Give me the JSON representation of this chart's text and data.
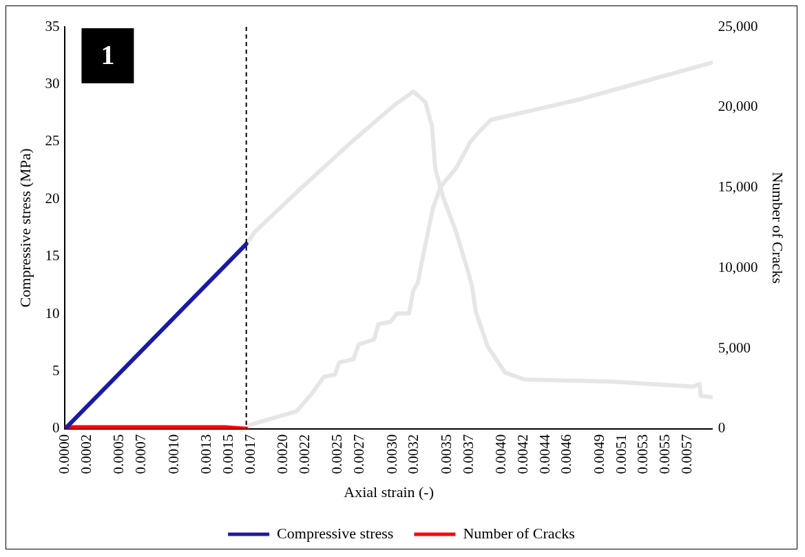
{
  "chart_data": {
    "type": "line",
    "xlabel": "Axial strain (-)",
    "ylabel": "Compressive stress (MPa)",
    "y2label": "Number of Cracks",
    "annotations": [
      "1"
    ],
    "xlim": [
      0,
      0.00593
    ],
    "xticks": [
      {
        "value": 0,
        "label": "0.0000"
      },
      0.0002,
      0.0005,
      0.0007,
      {
        "value": 0.001,
        "label": "0.0010"
      },
      0.0013,
      0.0015,
      0.0017,
      {
        "value": 0.002,
        "label": "0.0020"
      },
      0.0022,
      0.0025,
      0.0027,
      {
        "value": 0.003,
        "label": "0.0030"
      },
      0.0032,
      0.0035,
      0.0037,
      {
        "value": 0.004,
        "label": "0.0040"
      },
      0.0042,
      0.0044,
      0.0046,
      0.0049,
      0.0051,
      0.0053,
      0.0055,
      0.0057
    ],
    "ylim": [
      0,
      35
    ],
    "yticks": [
      0,
      5,
      10,
      15,
      20,
      25,
      30,
      35
    ],
    "y2lim": [
      0,
      25000
    ],
    "y2ticks": [
      0,
      {
        "value": 5000,
        "label": "5,000"
      },
      {
        "value": 10000,
        "label": "10,000"
      },
      {
        "value": 15000,
        "label": "15,000"
      },
      {
        "value": 20000,
        "label": "20,000"
      },
      {
        "value": 25000,
        "label": "25,000"
      }
    ],
    "grid": false,
    "legend": "bottom",
    "marker": "none",
    "line_style": "solid",
    "ref_lines": [
      {
        "axis": "x",
        "value": 0.00166,
        "color": "#000000",
        "line_style": "dashed"
      }
    ],
    "series": [
      {
        "name": "Compressive stress",
        "color": "#1a1aa6",
        "x": [
          0,
          0.00166
        ],
        "values": [
          0,
          16.1
        ]
      },
      {
        "color": "#e6e6e6",
        "x": [
          0.00166,
          0.00174,
          0.00215,
          0.00262,
          0.00301,
          0.00319,
          0.0033,
          0.00336,
          0.00339,
          0.00346,
          0.00358,
          0.00369,
          0.00373,
          0.00376,
          0.00387,
          0.00403,
          0.00421,
          0.00501,
          0.00575,
          0.00581,
          0.00582,
          0.00592
        ],
        "values": [
          16.1,
          17.17,
          20.85,
          24.95,
          28.14,
          29.37,
          28.45,
          26.36,
          22.69,
          20.23,
          17.17,
          13.73,
          12.26,
          10.24,
          7.17,
          4.9,
          4.29,
          4.11,
          3.68,
          3.9,
          2.88,
          2.76
        ]
      },
      {
        "name": "Number of Cracks",
        "color": "#ff0000",
        "axis": "y2",
        "x": [
          0,
          0.00146,
          0.00166
        ],
        "values": [
          100,
          100,
          0
        ]
      },
      {
        "color": "#e6e6e6",
        "axis": "y2",
        "x": [
          0.00166,
          0.00167,
          0.00212,
          0.00226,
          0.00237,
          0.00247,
          0.00251,
          0.00264,
          0.00269,
          0.00283,
          0.00287,
          0.00298,
          0.00304,
          0.00315,
          0.00319,
          0.00323,
          0.00328,
          0.00337,
          0.00344,
          0.00358,
          0.00371,
          0.00378,
          0.0039,
          0.00469,
          0.00592
        ],
        "values": [
          0,
          200,
          1090,
          2190,
          3240,
          3370,
          4120,
          4330,
          5250,
          5560,
          6520,
          6650,
          7180,
          7180,
          8620,
          9060,
          10810,
          13750,
          15060,
          16200,
          17820,
          18390,
          19220,
          20450,
          22770
        ]
      }
    ]
  }
}
